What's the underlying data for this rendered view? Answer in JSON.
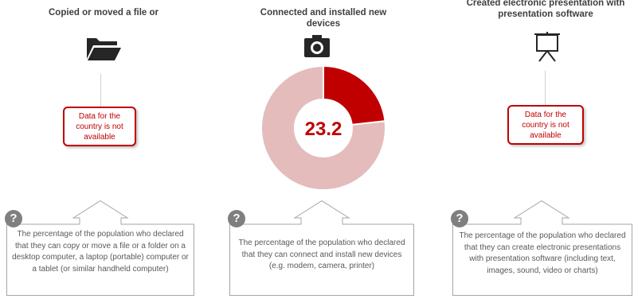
{
  "colors": {
    "accent": "#c00000",
    "donut_rest": "#e4bcbc",
    "text": "#404040",
    "desc_text": "#595959",
    "qmark": "#7f7f7f"
  },
  "columns": [
    {
      "title": "Copied or moved a file or",
      "icon": "folder-icon",
      "not_available": "Data for the country is not available",
      "description": "The percentage of the population who declared that they can copy or move a file or a folder on a desktop computer, a laptop (portable) computer or a tablet (or similar handheld computer)"
    },
    {
      "title": "Connected and installed new devices",
      "icon": "camera-icon",
      "description": "The percentage of the population who declared that they can connect and install new devices (e.g. modem, camera, printer)"
    },
    {
      "title": "Created electronic presentation with presentation software",
      "icon": "presentation-easel-icon",
      "not_available": "Data for the country is not available",
      "description": "The percentage of the population who declared that they can create electronic presentations with presentation software (including text, images, sound, video or charts)"
    }
  ],
  "help_icon": "?",
  "chart_data": {
    "type": "pie",
    "title": "Connected and installed new devices",
    "center_label": "23.2",
    "values": [
      23.2,
      76.8
    ],
    "colors": [
      "#c00000",
      "#e4bcbc"
    ]
  }
}
